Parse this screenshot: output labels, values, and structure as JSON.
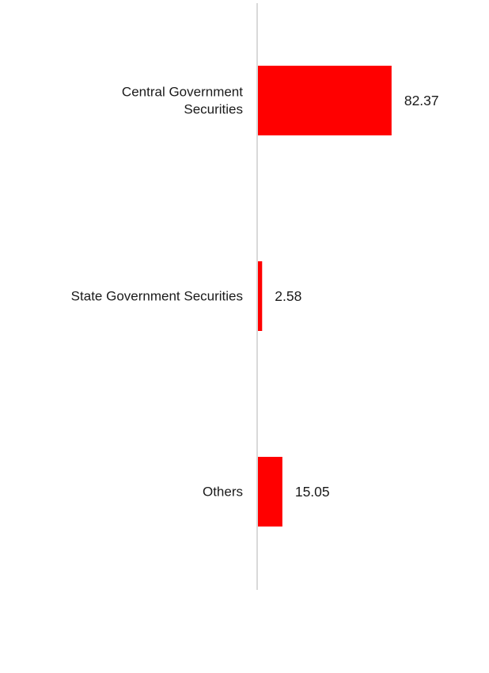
{
  "chart_data": {
    "type": "bar",
    "orientation": "horizontal",
    "categories": [
      "Central Government Securities",
      "State Government Securities",
      "Others"
    ],
    "category_label_lines": [
      [
        "Central Government",
        "Securities"
      ],
      [
        "State Government Securities"
      ],
      [
        "Others"
      ]
    ],
    "values": [
      82.37,
      2.58,
      15.05
    ],
    "value_labels": [
      "82.37",
      "2.58",
      "15.05"
    ],
    "title": "",
    "xlabel": "",
    "ylabel": "",
    "xlim": [
      0,
      100
    ],
    "grid": false,
    "legend": "none",
    "colors": {
      "bar": "#ff0000",
      "axis": "#d9d9d9",
      "text": "#1a1a1a"
    }
  }
}
